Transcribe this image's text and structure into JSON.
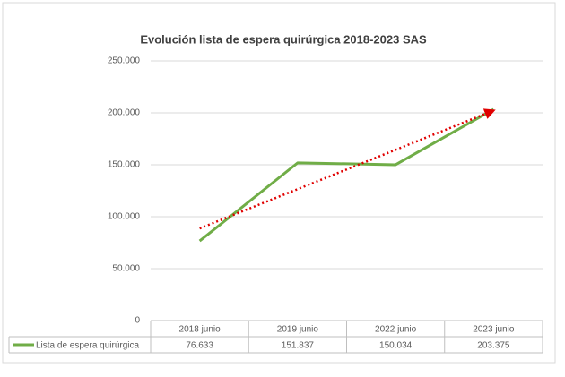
{
  "chart_data": {
    "type": "line",
    "title": "Evolución lista de espera quirúrgica 2018-2023 SAS",
    "categories": [
      "2018 junio",
      "2019 junio",
      "2022 junio",
      "2023 junio"
    ],
    "series": [
      {
        "name": "Lista de espera quirúrgica",
        "color": "#70ad47",
        "values": [
          76633,
          151837,
          150034,
          203375
        ],
        "value_labels": [
          "76.633",
          "151.837",
          "150.034",
          "203.375"
        ]
      }
    ],
    "trendline": {
      "color": "#e00000",
      "values": [
        88707,
        202233
      ]
    },
    "ylim": [
      0,
      250000
    ],
    "yticks": [
      0,
      {
        "value": 50000,
        "label": "50.000"
      },
      {
        "value": 100000,
        "label": "100.000"
      },
      {
        "value": 150000,
        "label": "150.000"
      },
      {
        "value": 200000,
        "label": "200.000"
      },
      {
        "value": 250000,
        "label": "250.000"
      }
    ],
    "grid": true,
    "data_table": true
  }
}
